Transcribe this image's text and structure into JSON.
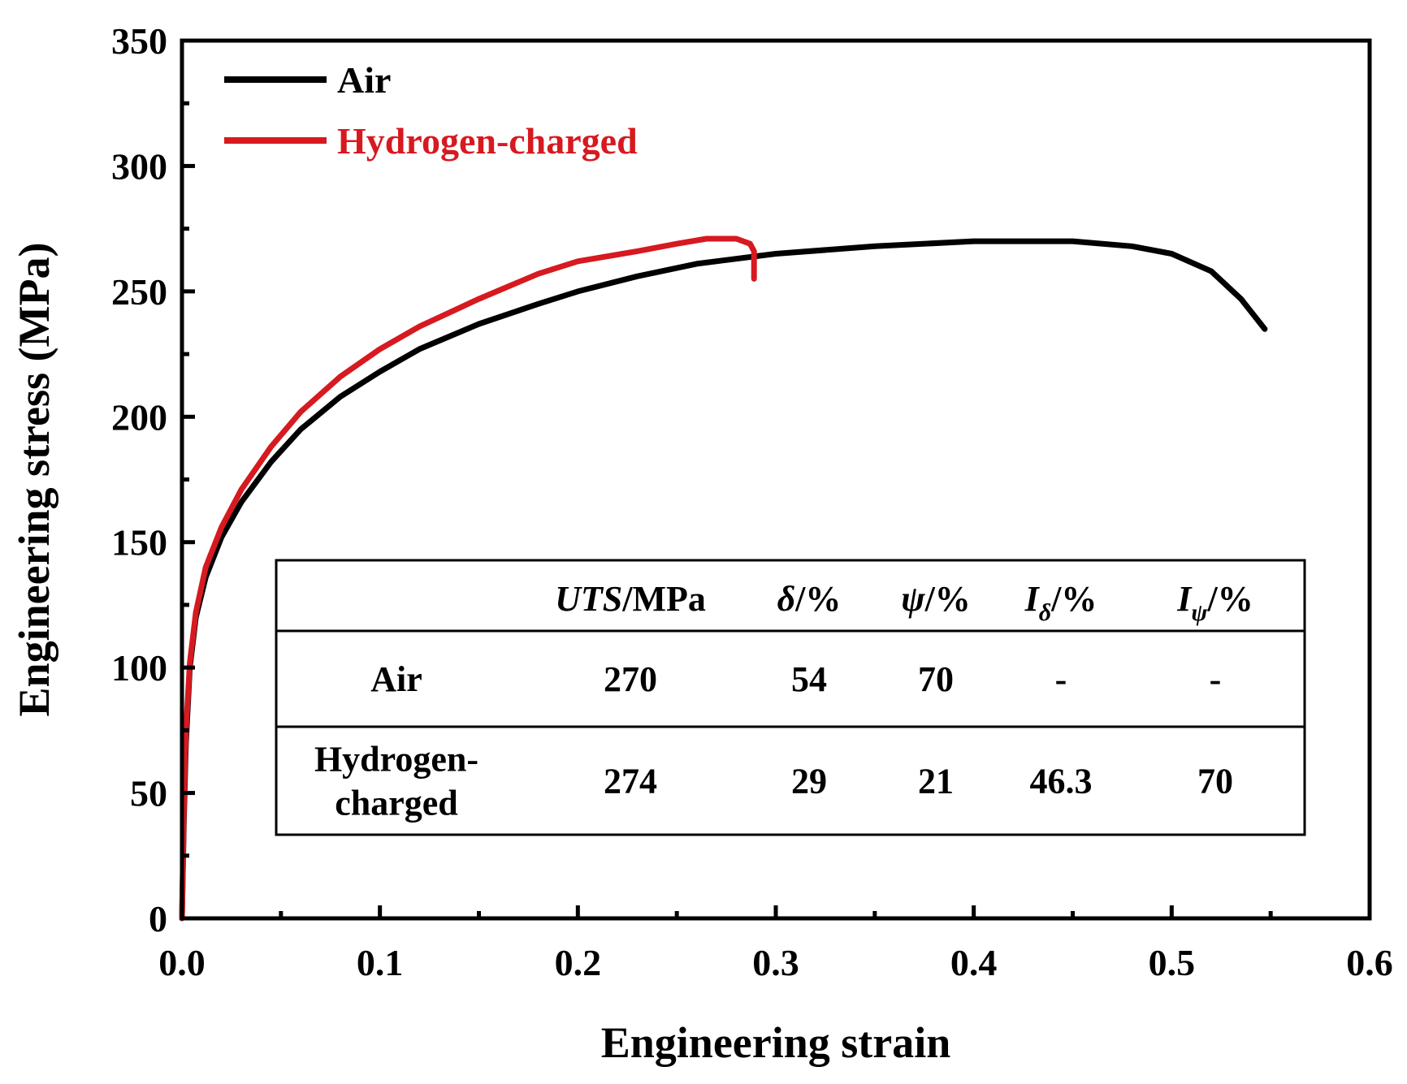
{
  "chart_data": {
    "type": "line",
    "xlabel": "Engineering strain",
    "ylabel": "Engineering stress (MPa)",
    "xlim": [
      0.0,
      0.6
    ],
    "ylim": [
      0,
      350
    ],
    "xticks": [
      0.0,
      0.1,
      0.2,
      0.3,
      0.4,
      0.5,
      0.6
    ],
    "xtick_labels": [
      "0.0",
      "0.1",
      "0.2",
      "0.3",
      "0.4",
      "0.5",
      "0.6"
    ],
    "yticks": [
      0,
      50,
      100,
      150,
      200,
      250,
      300,
      350
    ],
    "ytick_labels": [
      "0",
      "50",
      "100",
      "150",
      "200",
      "250",
      "300",
      "350"
    ],
    "grid": false,
    "legend_position": "top-left",
    "series": [
      {
        "name": "Air",
        "color": "#000000",
        "points": [
          [
            0.0,
            0
          ],
          [
            0.001,
            40
          ],
          [
            0.002,
            70
          ],
          [
            0.004,
            100
          ],
          [
            0.007,
            120
          ],
          [
            0.012,
            136
          ],
          [
            0.02,
            152
          ],
          [
            0.03,
            166
          ],
          [
            0.045,
            182
          ],
          [
            0.06,
            195
          ],
          [
            0.08,
            208
          ],
          [
            0.1,
            218
          ],
          [
            0.12,
            227
          ],
          [
            0.15,
            237
          ],
          [
            0.18,
            245
          ],
          [
            0.2,
            250
          ],
          [
            0.23,
            256
          ],
          [
            0.26,
            261
          ],
          [
            0.3,
            265
          ],
          [
            0.35,
            268
          ],
          [
            0.4,
            270
          ],
          [
            0.45,
            270
          ],
          [
            0.48,
            268
          ],
          [
            0.5,
            265
          ],
          [
            0.52,
            258
          ],
          [
            0.535,
            247
          ],
          [
            0.547,
            235
          ]
        ]
      },
      {
        "name": "Hydrogen-charged",
        "color": "#d71920",
        "points": [
          [
            0.0,
            0
          ],
          [
            0.001,
            45
          ],
          [
            0.002,
            75
          ],
          [
            0.004,
            102
          ],
          [
            0.007,
            122
          ],
          [
            0.012,
            140
          ],
          [
            0.02,
            156
          ],
          [
            0.03,
            171
          ],
          [
            0.045,
            188
          ],
          [
            0.06,
            202
          ],
          [
            0.08,
            216
          ],
          [
            0.1,
            227
          ],
          [
            0.12,
            236
          ],
          [
            0.15,
            247
          ],
          [
            0.18,
            257
          ],
          [
            0.2,
            262
          ],
          [
            0.23,
            266
          ],
          [
            0.25,
            269
          ],
          [
            0.265,
            271
          ],
          [
            0.28,
            271
          ],
          [
            0.287,
            269
          ],
          [
            0.289,
            266
          ],
          [
            0.289,
            255
          ]
        ]
      }
    ],
    "inset_table": {
      "header": [
        "",
        "UTS/MPa",
        "δ/%",
        "ψ/%",
        "Iδ/%",
        "Iψ/%"
      ],
      "rows": [
        {
          "label_lines": [
            "Air"
          ],
          "values": [
            "270",
            "54",
            "70",
            "-",
            "-"
          ]
        },
        {
          "label_lines": [
            "Hydrogen-",
            "charged"
          ],
          "values": [
            "274",
            "29",
            "21",
            "46.3",
            "70"
          ]
        }
      ]
    }
  },
  "header_parts": {
    "uts_italic": "UTS",
    "uts_suffix": "/MPa",
    "delta": "δ",
    "psi": "ψ",
    "i": "I",
    "percent": "/%"
  }
}
